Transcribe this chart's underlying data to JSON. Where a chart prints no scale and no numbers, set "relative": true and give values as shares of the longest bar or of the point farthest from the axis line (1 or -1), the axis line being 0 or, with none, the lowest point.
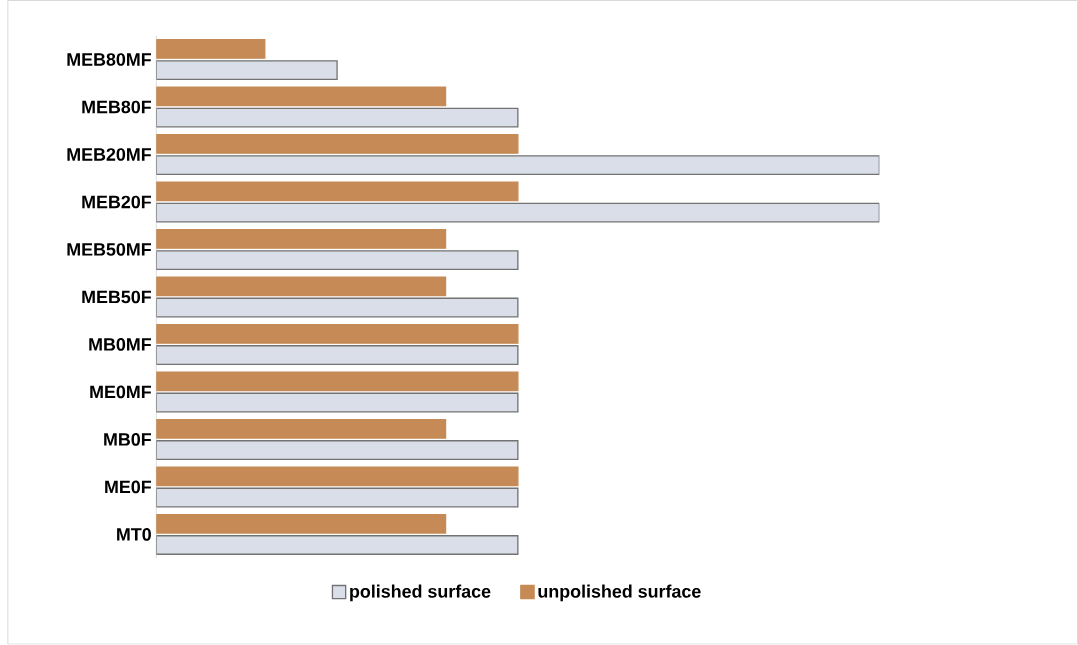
{
  "chart_data": {
    "type": "bar",
    "orientation": "horizontal",
    "relative": true,
    "legend": "bottom",
    "categories": [
      "MEB80MF",
      "MEB80F",
      "MEB20MF",
      "MEB20F",
      "MEB50MF",
      "MEB50F",
      "MB0MF",
      "ME0MF",
      "MB0F",
      "ME0F",
      "MT0"
    ],
    "series": [
      {
        "name": "polished surface",
        "color": "#d9dee8",
        "values": [
          0.25,
          0.5,
          1,
          1,
          0.5,
          0.5,
          0.5,
          0.5,
          0.5,
          0.5,
          0.5
        ]
      },
      {
        "name": "unpolished surface",
        "color": "#c58a55",
        "values": [
          0.15,
          0.4,
          0.5,
          0.5,
          0.4,
          0.4,
          0.5,
          0.5,
          0.4,
          0.5,
          0.4
        ]
      }
    ]
  }
}
